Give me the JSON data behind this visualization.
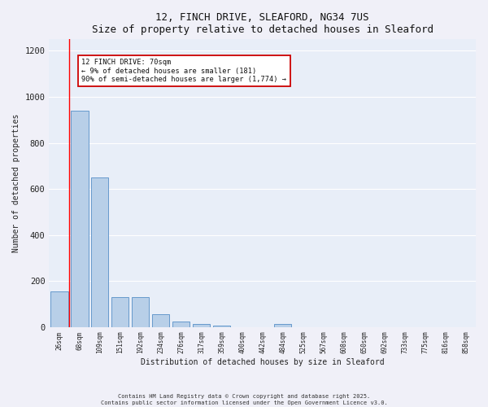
{
  "title": "12, FINCH DRIVE, SLEAFORD, NG34 7US",
  "subtitle": "Size of property relative to detached houses in Sleaford",
  "xlabel": "Distribution of detached houses by size in Sleaford",
  "ylabel": "Number of detached properties",
  "bar_labels": [
    "26sqm",
    "68sqm",
    "109sqm",
    "151sqm",
    "192sqm",
    "234sqm",
    "276sqm",
    "317sqm",
    "359sqm",
    "400sqm",
    "442sqm",
    "484sqm",
    "525sqm",
    "567sqm",
    "608sqm",
    "650sqm",
    "692sqm",
    "733sqm",
    "775sqm",
    "816sqm",
    "858sqm"
  ],
  "bar_values": [
    155,
    940,
    650,
    130,
    130,
    55,
    25,
    12,
    7,
    0,
    0,
    12,
    0,
    0,
    0,
    0,
    0,
    0,
    0,
    0,
    0
  ],
  "bar_color": "#b8cfe8",
  "bar_edge_color": "#6699cc",
  "background_color": "#e8eef8",
  "fig_color": "#f0f0f8",
  "grid_color": "#ffffff",
  "red_line_x": 0.5,
  "annotation_text": "12 FINCH DRIVE: 70sqm\n← 9% of detached houses are smaller (181)\n90% of semi-detached houses are larger (1,774) →",
  "annotation_box_color": "#ffffff",
  "annotation_box_edge": "#cc0000",
  "ylim": [
    0,
    1250
  ],
  "yticks": [
    0,
    200,
    400,
    600,
    800,
    1000,
    1200
  ],
  "footer_line1": "Contains HM Land Registry data © Crown copyright and database right 2025.",
  "footer_line2": "Contains public sector information licensed under the Open Government Licence v3.0."
}
